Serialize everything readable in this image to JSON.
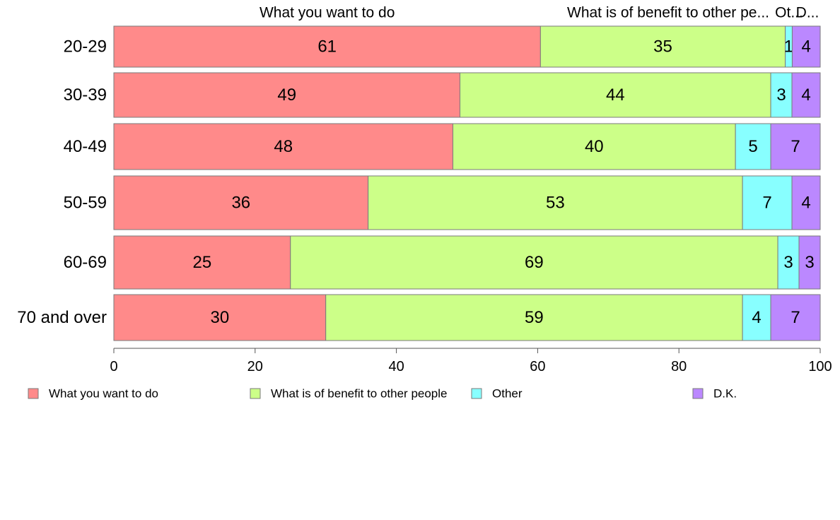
{
  "chart_data": {
    "type": "bar",
    "orientation": "horizontal",
    "stacked": true,
    "categories": [
      "20-29",
      "30-39",
      "40-49",
      "50-59",
      "60-69",
      "70 and over"
    ],
    "series": [
      {
        "name": "What you want to do",
        "color": "#FF8A8A",
        "values": [
          61,
          49,
          48,
          36,
          25,
          30
        ]
      },
      {
        "name": "What is of benefit to other people",
        "color": "#CCFF88",
        "values": [
          35,
          44,
          40,
          53,
          69,
          59
        ]
      },
      {
        "name": "Other",
        "color": "#88FFFF",
        "values": [
          1,
          3,
          5,
          7,
          3,
          4
        ]
      },
      {
        "name": "D.K.",
        "color": "#BB88FF",
        "values": [
          4,
          4,
          7,
          4,
          3,
          7
        ]
      }
    ],
    "top_labels": [
      "What you want to do",
      "What is of benefit to other pe...",
      "Ot...",
      "D..."
    ],
    "xlim": [
      0,
      100
    ],
    "xticks": [
      0,
      20,
      40,
      60,
      80,
      100
    ],
    "grid": false,
    "legend_position": "bottom"
  }
}
